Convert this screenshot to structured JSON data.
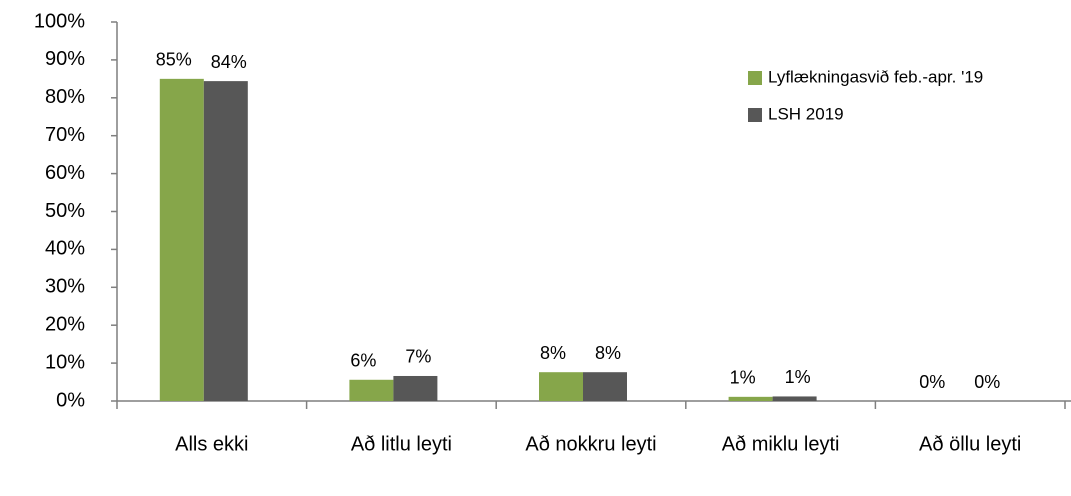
{
  "chart_data": {
    "type": "bar",
    "categories": [
      "Alls ekki",
      "Að litlu leyti",
      "Að nokkru leyti",
      "Að miklu leyti",
      "Að öllu leyti"
    ],
    "series": [
      {
        "name": "Lyflækningasvið feb.-apr. '19",
        "color": "#86a64a",
        "values": [
          85,
          5.6,
          7.6,
          1.1,
          0
        ],
        "value_labels": [
          "85%",
          "6%",
          "8%",
          "1%",
          "0%"
        ]
      },
      {
        "name": "LSH 2019",
        "color": "#575757",
        "values": [
          84.4,
          6.6,
          7.6,
          1.2,
          0
        ],
        "value_labels": [
          "84%",
          "7%",
          "8%",
          "1%",
          "0%"
        ]
      }
    ],
    "ylim": [
      0,
      100
    ],
    "yticks": [
      {
        "value": 0,
        "label": "0%"
      },
      {
        "value": 10,
        "label": "10%"
      },
      {
        "value": 20,
        "label": "20%"
      },
      {
        "value": 30,
        "label": "30%"
      },
      {
        "value": 40,
        "label": "40%"
      },
      {
        "value": 50,
        "label": "50%"
      },
      {
        "value": 60,
        "label": "60%"
      },
      {
        "value": 70,
        "label": "70%"
      },
      {
        "value": 80,
        "label": "80%"
      },
      {
        "value": 90,
        "label": "90%"
      },
      {
        "value": 100,
        "label": "100%"
      }
    ],
    "grid": false,
    "legend": "top-right"
  }
}
